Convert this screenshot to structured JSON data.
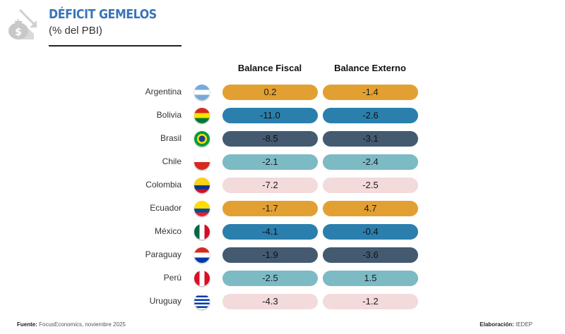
{
  "header": {
    "title": "DÉFICIT GEMELOS",
    "subtitle": "(% del PBI)",
    "icon": "money-bag-down-arrow-icon"
  },
  "chart_data": {
    "type": "table",
    "title": "DÉFICIT GEMELOS",
    "subtitle": "(% del PBI)",
    "columns": [
      "Balance Fiscal",
      "Balance Externo"
    ],
    "rows": [
      {
        "country": "Argentina",
        "fiscal": "0.2",
        "externo": "-1.4",
        "color": "#e3a032"
      },
      {
        "country": "Bolivia",
        "fiscal": "-11.0",
        "externo": "-2.6",
        "color": "#2a7fad"
      },
      {
        "country": "Brasil",
        "fiscal": "-8.5",
        "externo": "-3.1",
        "color": "#435a70"
      },
      {
        "country": "Chile",
        "fiscal": "-2.1",
        "externo": "-2.4",
        "color": "#7cbac4"
      },
      {
        "country": "Colombia",
        "fiscal": "-7.2",
        "externo": "-2.5",
        "color": "#f3dadb"
      },
      {
        "country": "Ecuador",
        "fiscal": "-1.7",
        "externo": "4.7",
        "color": "#e3a032"
      },
      {
        "country": "México",
        "fiscal": "-4.1",
        "externo": "-0.4",
        "color": "#2a7fad"
      },
      {
        "country": "Paraguay",
        "fiscal": "-1.9",
        "externo": "-3.6",
        "color": "#435a70"
      },
      {
        "country": "Perú",
        "fiscal": "-2.5",
        "externo": "1.5",
        "color": "#7cbac4"
      },
      {
        "country": "Uruguay",
        "fiscal": "-4.3",
        "externo": "-1.2",
        "color": "#f3dadb"
      }
    ]
  },
  "footer": {
    "source_label": "Fuente:",
    "source_value": "FocusEconomics, noviembre 2025",
    "credit_label": "Elaboración:",
    "credit_value": "IEDEP"
  }
}
